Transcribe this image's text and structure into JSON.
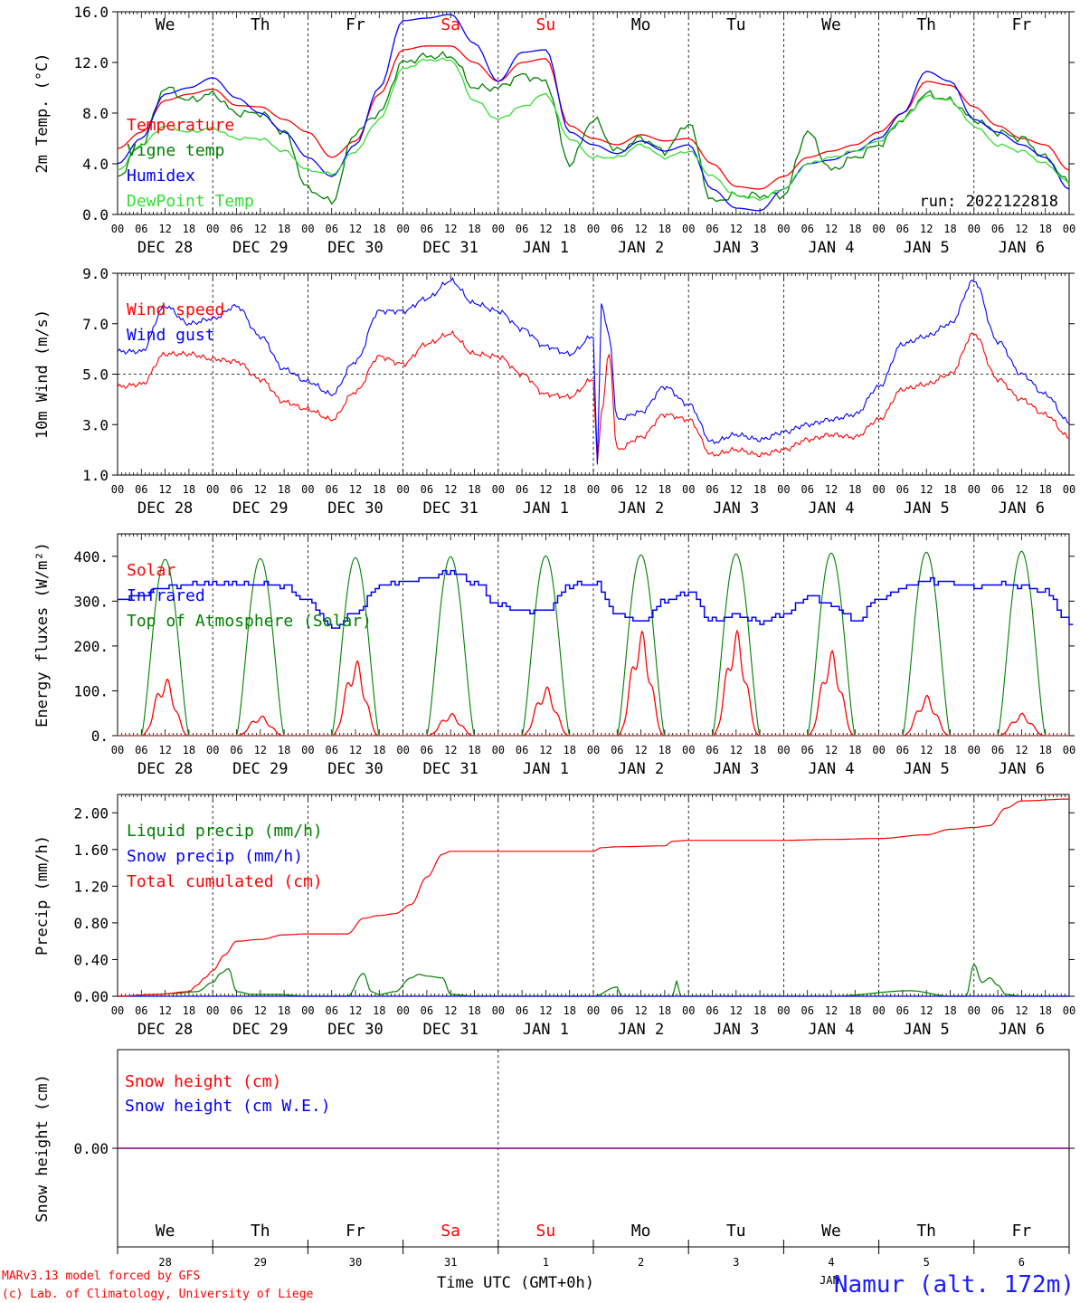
{
  "footer": {
    "model_line": "MARv3.13 model forced by GFS",
    "lab_line": "(c) Lab. of Climatology, University of Liege",
    "x_title": "Time UTC (GMT+0h)",
    "station": "Namur (alt. 172m)",
    "month_overlap": "JAN"
  },
  "colors": {
    "red": "#ff0000",
    "green": "#008000",
    "blue": "#0000ff",
    "light_green": "#33dd33",
    "purple": "#800080",
    "weekend": "#ff0000",
    "text": "#000000"
  },
  "day_names": [
    "We",
    "Th",
    "Fr",
    "Sa",
    "Su",
    "Mo",
    "Tu",
    "We",
    "Th",
    "Fr"
  ],
  "weekend_days": [
    "Sa",
    "Su"
  ],
  "date_labels": [
    "DEC 28",
    "DEC 29",
    "DEC 30",
    "DEC 31",
    "JAN  1",
    "JAN  2",
    "JAN  3",
    "JAN  4",
    "JAN  5",
    "JAN  6"
  ],
  "hour_ticks": [
    "00",
    "06",
    "12",
    "18"
  ],
  "day_numbers": [
    "28",
    "29",
    "30",
    "31",
    "1",
    "2",
    "3",
    "4",
    "5",
    "6"
  ],
  "chart_data": [
    {
      "type": "line",
      "ylabel": "2m Temp. (°C)",
      "ylim": [
        0,
        16
      ],
      "yticks": [
        "0.0",
        "4.0",
        "8.0",
        "12.0",
        "16.0"
      ],
      "ytick_values": [
        0,
        4,
        8,
        12,
        16
      ],
      "x_units": "hours since DEC 28 00 UTC",
      "xlim": [
        0,
        240
      ],
      "annotation": "run: 2022122818",
      "series": [
        {
          "name": "Temperature",
          "color": "#ff0000",
          "x": [
            0,
            6,
            12,
            18,
            24,
            30,
            36,
            42,
            48,
            54,
            60,
            66,
            72,
            78,
            84,
            90,
            96,
            102,
            108,
            114,
            120,
            126,
            132,
            138,
            144,
            150,
            156,
            162,
            168,
            174,
            180,
            186,
            192,
            198,
            204,
            210,
            216,
            222,
            228,
            234,
            240
          ],
          "y": [
            5.2,
            6.5,
            9.0,
            9.5,
            9.9,
            8.6,
            8.5,
            7.5,
            6.5,
            4.5,
            5.8,
            9.5,
            13.0,
            13.3,
            13.3,
            12.0,
            10.5,
            12.0,
            12.3,
            7.0,
            6.0,
            5.5,
            6.3,
            5.8,
            6.0,
            4.0,
            2.2,
            2.0,
            3.0,
            4.5,
            5.0,
            5.5,
            6.5,
            8.0,
            10.5,
            10.2,
            8.5,
            7.0,
            6.0,
            5.5,
            3.5
          ]
        },
        {
          "name": "Vigne temp",
          "color": "#008000",
          "x": [
            0,
            6,
            12,
            18,
            24,
            30,
            36,
            42,
            48,
            54,
            60,
            66,
            72,
            78,
            84,
            90,
            96,
            102,
            108,
            114,
            120,
            126,
            132,
            138,
            144,
            150,
            156,
            162,
            168,
            174,
            180,
            186,
            192,
            198,
            204,
            210,
            216,
            222,
            228,
            234,
            240
          ],
          "y": [
            3.0,
            5.5,
            10.0,
            9.0,
            9.5,
            8.0,
            8.0,
            6.5,
            2.0,
            1.0,
            6.5,
            8.0,
            12.0,
            12.5,
            12.5,
            10.0,
            10.0,
            11.0,
            10.5,
            4.0,
            7.5,
            5.0,
            6.0,
            5.0,
            7.2,
            1.0,
            1.5,
            1.5,
            1.5,
            6.5,
            3.5,
            4.5,
            5.5,
            7.5,
            9.5,
            9.0,
            7.5,
            6.5,
            6.0,
            4.5,
            2.5
          ]
        },
        {
          "name": "Humidex",
          "color": "#0000ff",
          "x": [
            0,
            6,
            12,
            18,
            24,
            30,
            36,
            42,
            48,
            54,
            60,
            66,
            72,
            78,
            84,
            90,
            96,
            102,
            108,
            114,
            120,
            126,
            132,
            138,
            144,
            150,
            156,
            162,
            168,
            174,
            180,
            186,
            192,
            198,
            204,
            210,
            216,
            222,
            228,
            234,
            240
          ],
          "y": [
            4.0,
            6.0,
            9.5,
            10.0,
            10.8,
            9.2,
            8.0,
            6.5,
            4.5,
            3.0,
            5.5,
            10.0,
            15.3,
            15.5,
            15.8,
            13.5,
            10.5,
            12.8,
            13.0,
            6.5,
            5.5,
            4.8,
            5.8,
            5.0,
            5.5,
            2.0,
            0.5,
            0.3,
            2.0,
            4.0,
            4.3,
            5.0,
            6.0,
            8.0,
            11.3,
            10.5,
            7.5,
            6.5,
            5.5,
            4.5,
            2.0
          ]
        },
        {
          "name": "DewPoint Temp",
          "color": "#33dd33",
          "x": [
            0,
            6,
            12,
            18,
            24,
            30,
            36,
            42,
            48,
            54,
            60,
            66,
            72,
            78,
            84,
            90,
            96,
            102,
            108,
            114,
            120,
            126,
            132,
            138,
            144,
            150,
            156,
            162,
            168,
            174,
            180,
            186,
            192,
            198,
            204,
            210,
            216,
            222,
            228,
            234,
            240
          ],
          "y": [
            3.5,
            5.5,
            7.0,
            6.5,
            6.8,
            6.0,
            6.0,
            5.0,
            3.5,
            3.2,
            5.0,
            7.5,
            11.5,
            12.2,
            12.2,
            9.0,
            7.5,
            8.5,
            9.5,
            6.0,
            4.5,
            4.5,
            5.5,
            4.5,
            5.0,
            3.0,
            1.5,
            1.2,
            2.0,
            4.0,
            4.5,
            5.0,
            5.8,
            7.5,
            9.3,
            9.0,
            7.0,
            5.5,
            5.0,
            4.0,
            2.5
          ]
        }
      ]
    },
    {
      "type": "line",
      "ylabel": "10m Wind (m/s)",
      "ylim": [
        1,
        9
      ],
      "yticks": [
        "1.0",
        "3.0",
        "5.0",
        "7.0",
        "9.0"
      ],
      "ytick_values": [
        1,
        3,
        5,
        7,
        9
      ],
      "reference_line": 5.0,
      "x_units": "hours since DEC 28 00 UTC",
      "xlim": [
        0,
        240
      ],
      "series": [
        {
          "name": "Wind speed",
          "color": "#ff0000",
          "x": [
            0,
            6,
            12,
            18,
            24,
            30,
            36,
            42,
            48,
            54,
            60,
            66,
            72,
            78,
            84,
            90,
            96,
            102,
            108,
            114,
            120,
            121,
            122,
            124,
            126,
            132,
            138,
            144,
            150,
            156,
            162,
            168,
            174,
            180,
            186,
            192,
            198,
            204,
            210,
            216,
            222,
            228,
            234,
            240
          ],
          "y": [
            4.5,
            4.6,
            5.8,
            5.8,
            5.6,
            5.5,
            4.8,
            3.9,
            3.6,
            3.2,
            4.3,
            5.7,
            5.4,
            6.2,
            6.6,
            5.8,
            5.7,
            5.0,
            4.2,
            4.1,
            4.8,
            1.4,
            3.5,
            5.8,
            2.0,
            2.5,
            3.4,
            3.2,
            1.8,
            2.0,
            1.8,
            2.0,
            2.4,
            2.6,
            2.5,
            3.2,
            4.4,
            4.6,
            5.0,
            6.6,
            4.8,
            4.0,
            3.4,
            2.5
          ]
        },
        {
          "name": "Wind gust",
          "color": "#0000ff",
          "x": [
            0,
            6,
            12,
            18,
            24,
            30,
            36,
            42,
            48,
            54,
            60,
            66,
            72,
            78,
            84,
            90,
            96,
            102,
            108,
            114,
            120,
            121,
            122,
            124,
            126,
            132,
            138,
            144,
            150,
            156,
            162,
            168,
            174,
            180,
            186,
            192,
            198,
            204,
            210,
            216,
            222,
            228,
            234,
            240
          ],
          "y": [
            5.9,
            5.9,
            7.7,
            7.0,
            7.2,
            7.7,
            6.5,
            5.2,
            4.7,
            4.2,
            5.5,
            7.5,
            7.5,
            8.0,
            8.7,
            7.8,
            7.5,
            6.8,
            6.1,
            5.8,
            6.5,
            1.3,
            7.8,
            6.5,
            3.2,
            3.5,
            4.5,
            3.8,
            2.3,
            2.6,
            2.4,
            2.7,
            3.0,
            3.2,
            3.4,
            4.5,
            6.2,
            6.5,
            7.0,
            8.7,
            6.3,
            5.0,
            4.2,
            3.1
          ]
        }
      ]
    },
    {
      "type": "line",
      "ylabel": "Energy fluxes (W/m²)",
      "ylim": [
        0,
        450
      ],
      "yticks": [
        "0.",
        "100.",
        "200.",
        "300.",
        "400."
      ],
      "ytick_values": [
        0,
        100,
        200,
        300,
        400
      ],
      "x_units": "hours since DEC 28 00 UTC",
      "xlim": [
        0,
        240
      ],
      "series": [
        {
          "name": "Solar",
          "color": "#ff0000",
          "daily_peaks": [
            130,
            45,
            170,
            50,
            110,
            235,
            235,
            190,
            90,
            50
          ]
        },
        {
          "name": "Infrared",
          "color": "#0000ff",
          "x": [
            0,
            6,
            12,
            18,
            24,
            30,
            36,
            42,
            48,
            54,
            60,
            66,
            72,
            78,
            84,
            90,
            96,
            102,
            108,
            114,
            120,
            126,
            132,
            138,
            144,
            150,
            156,
            162,
            168,
            174,
            180,
            186,
            192,
            198,
            204,
            210,
            216,
            222,
            228,
            234,
            240
          ],
          "y": [
            305,
            315,
            332,
            337,
            340,
            338,
            338,
            330,
            300,
            240,
            275,
            335,
            345,
            350,
            365,
            340,
            290,
            280,
            280,
            335,
            340,
            270,
            255,
            300,
            320,
            255,
            270,
            255,
            270,
            310,
            290,
            255,
            305,
            330,
            345,
            340,
            330,
            340,
            330,
            320,
            250
          ]
        },
        {
          "name": "Top of Atmosphere (Solar)",
          "color": "#008000",
          "daily_peaks": [
            393,
            395,
            397,
            399,
            401,
            403,
            405,
            407,
            409,
            411
          ]
        }
      ]
    },
    {
      "type": "line",
      "ylabel": "Precip (mm/h)",
      "ylim": [
        0,
        2.2
      ],
      "yticks": [
        "0.00",
        "0.40",
        "0.80",
        "1.20",
        "1.60",
        "2.00"
      ],
      "ytick_values": [
        0,
        0.4,
        0.8,
        1.2,
        1.6,
        2.0
      ],
      "x_units": "hours since DEC 28 00 UTC",
      "xlim": [
        0,
        240
      ],
      "series": [
        {
          "name": "Liquid precip (mm/h)",
          "color": "#008000",
          "x": [
            0,
            10,
            14,
            20,
            24,
            26,
            28,
            30,
            34,
            40,
            48,
            58,
            62,
            64,
            66,
            70,
            74,
            76,
            78,
            82,
            84,
            90,
            120,
            126,
            127,
            128,
            140,
            141,
            142,
            180,
            200,
            210,
            212,
            214,
            216,
            218,
            220,
            222,
            224,
            228,
            240
          ],
          "y": [
            0,
            0.02,
            0.03,
            0.05,
            0.15,
            0.25,
            0.3,
            0.05,
            0.02,
            0.02,
            0,
            0,
            0.25,
            0.05,
            0.02,
            0.05,
            0.2,
            0.24,
            0.22,
            0.2,
            0.02,
            0,
            0,
            0.1,
            0,
            0,
            0,
            0.17,
            0,
            0,
            0.06,
            0,
            0,
            0,
            0.35,
            0.15,
            0.2,
            0.12,
            0.02,
            0,
            0
          ]
        },
        {
          "name": "Snow precip (mm/h)",
          "color": "#0000ff",
          "x": [
            0,
            240
          ],
          "y": [
            0,
            0
          ]
        },
        {
          "name": "Total cumulated (cm)",
          "color": "#ff0000",
          "x": [
            0,
            10,
            18,
            20,
            22,
            24,
            27,
            30,
            36,
            42,
            48,
            58,
            62,
            66,
            70,
            74,
            78,
            82,
            84,
            96,
            120,
            122,
            126,
            138,
            140,
            144,
            156,
            168,
            180,
            192,
            204,
            210,
            216,
            220,
            224,
            228,
            240
          ],
          "y": [
            0,
            0.02,
            0.05,
            0.12,
            0.2,
            0.28,
            0.45,
            0.6,
            0.62,
            0.67,
            0.68,
            0.68,
            0.85,
            0.88,
            0.9,
            1.0,
            1.3,
            1.55,
            1.58,
            1.58,
            1.58,
            1.62,
            1.63,
            1.64,
            1.69,
            1.7,
            1.7,
            1.7,
            1.71,
            1.72,
            1.76,
            1.82,
            1.84,
            1.86,
            2.05,
            2.13,
            2.15
          ]
        }
      ]
    },
    {
      "type": "line",
      "ylabel": "Snow height (cm)",
      "ylim": [
        -1,
        1
      ],
      "yticks": [
        "0.00"
      ],
      "ytick_values": [
        0
      ],
      "x_units": "hours since DEC 28 00 UTC",
      "xlim": [
        0,
        240
      ],
      "series": [
        {
          "name": "Snow height (cm)",
          "color": "#ff0000",
          "x": [
            0,
            240
          ],
          "y": [
            0,
            0
          ]
        },
        {
          "name": "Snow height (cm W.E.)",
          "color": "#0000ff",
          "x": [
            0,
            240
          ],
          "y": [
            0,
            0
          ]
        }
      ]
    }
  ]
}
